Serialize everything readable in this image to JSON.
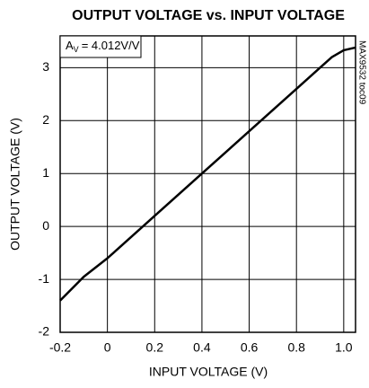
{
  "chart_data": {
    "type": "line",
    "title": "OUTPUT VOLTAGE vs. INPUT VOLTAGE",
    "x_label": "INPUT VOLTAGE (V)",
    "y_label": "OUTPUT VOLTAGE (V)",
    "annotation": {
      "main": "A",
      "sub": "V",
      "rest": "= 4.012V/V"
    },
    "side_note": "MAX9532 toc09",
    "x": [
      -0.2,
      -0.1,
      0,
      0.2,
      0.4,
      0.6,
      0.8,
      0.9,
      0.95,
      1.0,
      1.05
    ],
    "series": [
      {
        "color": "#000000",
        "values": [
          -1.4,
          -0.95,
          -0.6,
          0.2,
          1.0,
          1.8,
          2.6,
          3.0,
          3.2,
          3.33,
          3.38
        ]
      }
    ],
    "xlim": [
      -0.2,
      1.05
    ],
    "ylim": [
      -2,
      3.6
    ],
    "xticks": [
      -0.2,
      0,
      0.2,
      0.4,
      0.6,
      0.8,
      {
        "value": 1,
        "label": "1.0"
      }
    ],
    "yticks": [
      -2,
      -1,
      0,
      1,
      2,
      3
    ],
    "grid": true
  }
}
